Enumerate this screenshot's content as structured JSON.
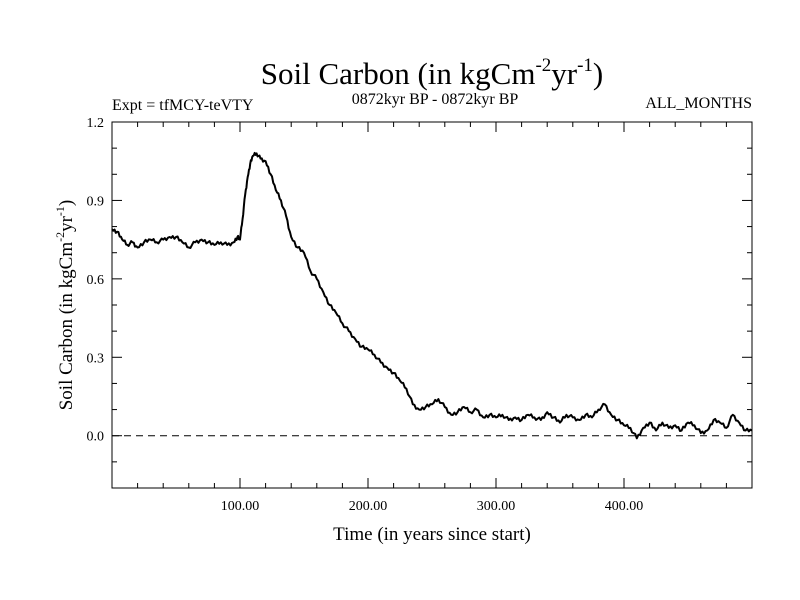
{
  "chart_data": {
    "type": "line",
    "title": "Soil Carbon (in kgCm",
    "title_sup1": "-2",
    "title_mid": "yr",
    "title_sup2": "-1",
    "title_end": ")",
    "subtitle_left": "Expt = tfMCY-teVTY",
    "subtitle_center": "0872kyr BP - 0872kyr BP",
    "subtitle_right": "ALL_MONTHS",
    "xlabel": "Time (in years since start)",
    "ylabel": "Soil Carbon (in kgCm",
    "ylabel_sup1": "-2",
    "ylabel_mid": "yr",
    "ylabel_sup2": "-1",
    "ylabel_end": ")",
    "xlim": [
      0,
      500
    ],
    "ylim": [
      -0.2,
      1.2
    ],
    "x_ticks": [
      100,
      200,
      300,
      400
    ],
    "x_tick_labels": [
      "100.00",
      "200.00",
      "300.00",
      "400.00"
    ],
    "y_ticks": [
      0.0,
      0.3,
      0.6,
      0.9,
      1.2
    ],
    "y_tick_labels": [
      "0.0",
      "0.3",
      "0.6",
      "0.9",
      "1.2"
    ],
    "reference_line": 0.0,
    "series": [
      {
        "name": "Soil Carbon",
        "x": [
          0,
          4,
          8,
          12,
          16,
          20,
          25,
          30,
          35,
          40,
          45,
          50,
          55,
          60,
          65,
          70,
          75,
          80,
          85,
          90,
          95,
          98,
          100,
          102,
          104,
          106,
          108,
          110,
          113,
          116,
          120,
          124,
          128,
          132,
          136,
          140,
          145,
          150,
          155,
          160,
          165,
          170,
          175,
          180,
          185,
          190,
          195,
          200,
          205,
          210,
          215,
          220,
          225,
          230,
          235,
          240,
          245,
          250,
          255,
          260,
          265,
          270,
          275,
          280,
          285,
          290,
          295,
          300,
          305,
          310,
          315,
          320,
          325,
          330,
          335,
          340,
          345,
          350,
          355,
          360,
          365,
          370,
          375,
          380,
          385,
          390,
          395,
          400,
          405,
          410,
          415,
          420,
          425,
          430,
          435,
          440,
          445,
          450,
          455,
          460,
          465,
          470,
          475,
          480,
          485,
          490,
          495,
          500
        ],
        "values": [
          0.79,
          0.78,
          0.75,
          0.73,
          0.74,
          0.72,
          0.74,
          0.75,
          0.74,
          0.75,
          0.76,
          0.76,
          0.74,
          0.72,
          0.74,
          0.75,
          0.74,
          0.73,
          0.74,
          0.73,
          0.74,
          0.76,
          0.75,
          0.83,
          0.92,
          0.99,
          1.04,
          1.07,
          1.08,
          1.06,
          1.05,
          1.0,
          0.94,
          0.9,
          0.84,
          0.76,
          0.72,
          0.7,
          0.63,
          0.6,
          0.55,
          0.5,
          0.47,
          0.43,
          0.4,
          0.37,
          0.34,
          0.33,
          0.31,
          0.28,
          0.26,
          0.24,
          0.21,
          0.18,
          0.12,
          0.1,
          0.11,
          0.12,
          0.14,
          0.11,
          0.08,
          0.09,
          0.11,
          0.09,
          0.1,
          0.07,
          0.08,
          0.07,
          0.08,
          0.06,
          0.07,
          0.06,
          0.08,
          0.07,
          0.06,
          0.09,
          0.07,
          0.05,
          0.08,
          0.07,
          0.06,
          0.08,
          0.07,
          0.1,
          0.12,
          0.08,
          0.06,
          0.04,
          0.03,
          -0.01,
          0.03,
          0.05,
          0.02,
          0.05,
          0.03,
          0.04,
          0.02,
          0.05,
          0.04,
          0.01,
          0.02,
          0.06,
          0.05,
          0.03,
          0.08,
          0.05,
          0.02,
          0.02
        ]
      }
    ]
  }
}
